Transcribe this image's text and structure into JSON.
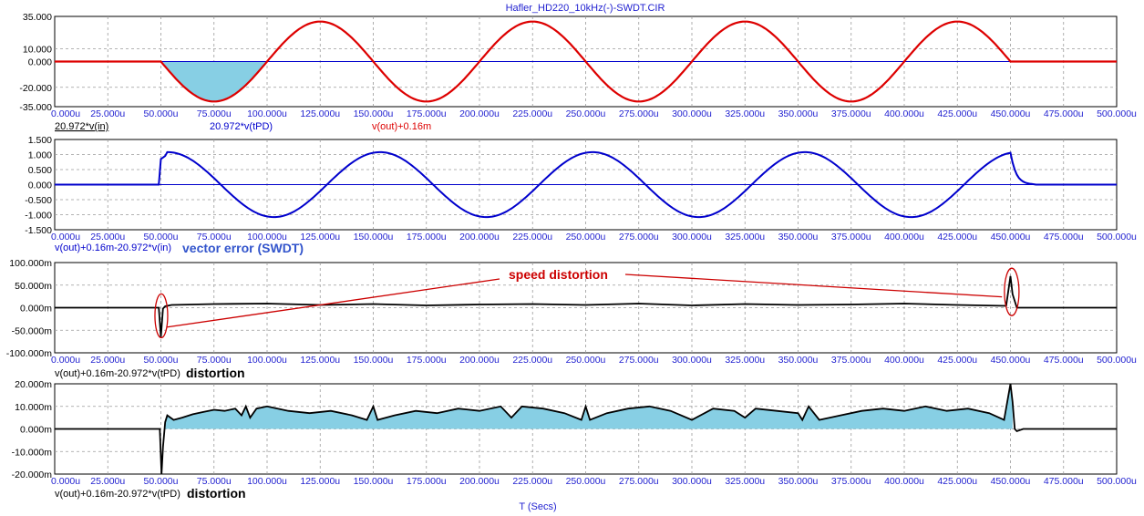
{
  "window": {
    "title": "Hafler_HD220_10kHz(-)-SWDT.CIR"
  },
  "colors": {
    "red": "#dd0000",
    "blue": "#0000cc",
    "black": "#000000",
    "fill": "#87cfe4",
    "callout": "#cc0000",
    "axis_text": "#1f1fd0",
    "annotation_blue": "#3355cc",
    "grid": "#9a9a9a",
    "frame": "#000000"
  },
  "chart_data": [
    {
      "type": "line",
      "ylim": [
        -35,
        35
      ],
      "xlim": [
        0,
        500
      ],
      "y_ticks": [
        "35.000",
        "10.000",
        "0.000",
        "-20.000",
        "-35.000"
      ],
      "y_tick_values": [
        35,
        10,
        0,
        -20,
        -35
      ],
      "x_ticks": [
        "0.000u",
        "25.000u",
        "50.000u",
        "75.000u",
        "100.000u",
        "125.000u",
        "150.000u",
        "175.000u",
        "200.000u",
        "225.000u",
        "250.000u",
        "275.000u",
        "300.000u",
        "325.000u",
        "350.000u",
        "375.000u",
        "400.000u",
        "425.000u",
        "450.000u",
        "475.000u",
        "500.000u"
      ],
      "grid": true,
      "series": [
        {
          "name": "20.972*v(in)",
          "color": "#000000",
          "x": [
            0,
            50,
            75,
            100,
            125,
            150,
            175,
            200,
            225,
            250,
            275,
            300,
            325,
            350,
            375,
            400,
            425,
            450,
            500
          ],
          "y": [
            0,
            0,
            -31,
            0,
            31,
            0,
            -31,
            0,
            31,
            0,
            -31,
            0,
            31,
            0,
            -31,
            0,
            31,
            0,
            0
          ]
        },
        {
          "name": "20.972*v(tPD)",
          "color": "#0000cc",
          "x": [
            0,
            500
          ],
          "y": [
            0,
            0
          ]
        },
        {
          "name": "v(out)+0.16m",
          "color": "#dd0000",
          "x": [
            0,
            50,
            75,
            100,
            125,
            150,
            175,
            200,
            225,
            250,
            275,
            300,
            325,
            350,
            375,
            400,
            425,
            450,
            500
          ],
          "y": [
            0,
            0,
            -31,
            0,
            31,
            0,
            -31,
            0,
            31,
            0,
            -31,
            0,
            31,
            0,
            -31,
            0,
            31,
            0,
            0
          ]
        }
      ]
    },
    {
      "type": "line",
      "ylim": [
        -1.5,
        1.5
      ],
      "xlim": [
        0,
        500
      ],
      "y_ticks": [
        "1.500",
        "1.000",
        "0.500",
        "0.000",
        "-0.500",
        "-1.000",
        "-1.500"
      ],
      "y_tick_values": [
        1.5,
        1.0,
        0.5,
        0,
        -0.5,
        -1.0,
        -1.5
      ],
      "x_ticks": [
        "0.000u",
        "25.000u",
        "50.000u",
        "75.000u",
        "100.000u",
        "125.000u",
        "150.000u",
        "175.000u",
        "200.000u",
        "225.000u",
        "250.000u",
        "275.000u",
        "300.000u",
        "325.000u",
        "350.000u",
        "375.000u",
        "400.000u",
        "425.000u",
        "450.000u",
        "475.000u",
        "500.000u"
      ],
      "grid": true,
      "series": [
        {
          "name": "v(out)+0.16m-20.972*v(in)",
          "color": "#0000cc",
          "x": [
            0,
            50,
            52,
            55,
            75,
            100,
            125,
            150,
            175,
            200,
            225,
            250,
            275,
            300,
            325,
            350,
            375,
            400,
            425,
            450,
            455,
            460,
            500
          ],
          "y": [
            0,
            0,
            0.85,
            1.05,
            0,
            -1.05,
            0,
            1.1,
            0,
            -1.05,
            0,
            1.1,
            0,
            -1.05,
            0,
            1.1,
            0,
            -1.05,
            0,
            1.1,
            0.15,
            0.02,
            0
          ]
        }
      ]
    },
    {
      "type": "line",
      "ylim": [
        -100,
        100
      ],
      "xlim": [
        0,
        500
      ],
      "y_ticks": [
        "100.000m",
        "50.000m",
        "0.000m",
        "-50.000m",
        "-100.000m"
      ],
      "y_tick_values": [
        100,
        50,
        0,
        -50,
        -100
      ],
      "x_ticks": [
        "0.000u",
        "25.000u",
        "50.000u",
        "75.000u",
        "100.000u",
        "125.000u",
        "150.000u",
        "175.000u",
        "200.000u",
        "225.000u",
        "250.000u",
        "275.000u",
        "300.000u",
        "325.000u",
        "350.000u",
        "375.000u",
        "400.000u",
        "425.000u",
        "450.000u",
        "475.000u",
        "500.000u"
      ],
      "grid": true,
      "series": [
        {
          "name": "v(out)+0.16m-20.972*v(tPD)",
          "color": "#000000",
          "x": [
            0,
            49,
            50,
            51,
            52,
            55,
            75,
            100,
            125,
            150,
            175,
            200,
            225,
            250,
            275,
            300,
            325,
            350,
            375,
            400,
            425,
            448,
            450,
            451,
            453,
            500
          ],
          "y": [
            0,
            0,
            -65,
            -2,
            3,
            6,
            8,
            9,
            6,
            8,
            5,
            7,
            8,
            6,
            9,
            5,
            8,
            6,
            7,
            9,
            6,
            4,
            70,
            30,
            0,
            0
          ]
        }
      ]
    },
    {
      "type": "area",
      "ylim": [
        -20,
        20
      ],
      "xlim": [
        0,
        500
      ],
      "y_ticks": [
        "20.000m",
        "10.000m",
        "0.000m",
        "-10.000m",
        "-20.000m"
      ],
      "y_tick_values": [
        20,
        10,
        0,
        -10,
        -20
      ],
      "x_ticks": [
        "0.000u",
        "25.000u",
        "50.000u",
        "75.000u",
        "100.000u",
        "125.000u",
        "150.000u",
        "175.000u",
        "200.000u",
        "225.000u",
        "250.000u",
        "275.000u",
        "300.000u",
        "325.000u",
        "350.000u",
        "375.000u",
        "400.000u",
        "425.000u",
        "450.000u",
        "475.000u",
        "500.000u"
      ],
      "xlabel": "T (Secs)",
      "grid": true,
      "series": [
        {
          "name": "v(out)+0.16m-20.972*v(tPD)",
          "color": "#000000",
          "x": [
            0,
            49.5,
            50.3,
            51,
            52,
            53,
            56,
            60,
            65,
            70,
            75,
            80,
            85,
            88,
            90,
            92,
            95,
            100,
            110,
            120,
            130,
            140,
            147,
            150,
            152,
            160,
            170,
            180,
            190,
            200,
            210,
            215,
            220,
            230,
            240,
            248,
            250,
            252,
            260,
            270,
            280,
            290,
            300,
            310,
            320,
            325,
            330,
            340,
            350,
            352,
            355,
            360,
            370,
            380,
            390,
            400,
            410,
            420,
            430,
            440,
            447,
            450,
            451,
            452,
            453,
            456,
            500
          ],
          "y": [
            0,
            0,
            -20,
            -8,
            3,
            6,
            4,
            5,
            6.5,
            7.5,
            8.5,
            8,
            9,
            6,
            10,
            5,
            9,
            10,
            8,
            7,
            8,
            6,
            4,
            10,
            4,
            6,
            8,
            7,
            9,
            8,
            10,
            5,
            10,
            9,
            7,
            4,
            10,
            4,
            7,
            9,
            10,
            8,
            4,
            9,
            8,
            5,
            9,
            8,
            7,
            4,
            10,
            4,
            6,
            8,
            9,
            8,
            10,
            8,
            9,
            7,
            4,
            20,
            12,
            0,
            -1,
            0,
            0
          ]
        }
      ]
    }
  ],
  "labels": {
    "p1": [
      "20.972*v(in)",
      "20.972*v(tPD)",
      "v(out)+0.16m"
    ],
    "p2": [
      "v(out)+0.16m-20.972*v(in)",
      "vector error (SWDT)"
    ],
    "p3": [
      "v(out)+0.16m-20.972*v(tPD)",
      "distortion"
    ],
    "p4": [
      "v(out)+0.16m-20.972*v(tPD)",
      "distortion"
    ],
    "speed_distortion": "speed distortion",
    "xlabel": "T (Secs)"
  }
}
